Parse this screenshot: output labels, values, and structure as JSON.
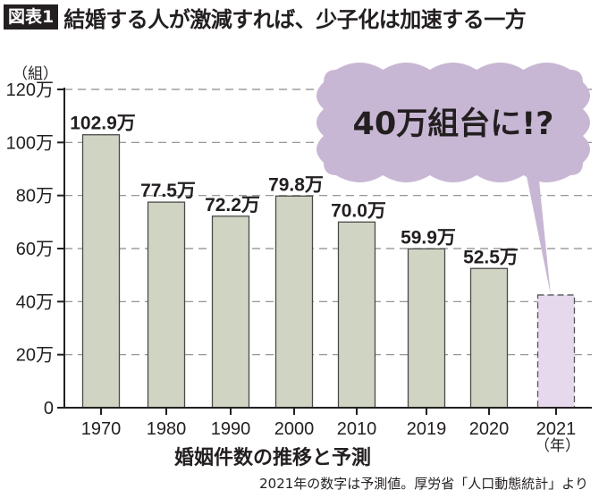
{
  "header": {
    "badge": "図表1",
    "title": "結婚する人が激減すれば、少子化は加速する一方"
  },
  "axis": {
    "unit": "（組）",
    "year_unit": "（年）"
  },
  "callout": {
    "text": "40万組台に!?",
    "color": "#c8b7d4"
  },
  "subtitle": "婚姻件数の推移と予測",
  "source": "2021年の数字は予測値。厚労省「人口動態統計」より",
  "colors": {
    "bar": "#cfd4c3",
    "bar_forecast": "#e6d9ee",
    "grid": "#8a8a8a"
  },
  "chart_data": {
    "type": "bar",
    "title": "婚姻件数の推移と予測",
    "categories": [
      "1970",
      "1980",
      "1990",
      "2000",
      "2010",
      "2019",
      "2020",
      "2021"
    ],
    "values": [
      102.9,
      77.5,
      72.2,
      79.8,
      70.0,
      59.9,
      52.5,
      42.5
    ],
    "value_labels": [
      "102.9万",
      "77.5万",
      "72.2万",
      "79.8万",
      "70.0万",
      "59.9万",
      "52.5万",
      ""
    ],
    "forecast": [
      false,
      false,
      false,
      false,
      false,
      false,
      false,
      true
    ],
    "xlabel": "（年）",
    "ylabel": "（組）",
    "yticks": [
      "0",
      "20万",
      "40万",
      "60万",
      "80万",
      "100万",
      "120万"
    ],
    "ylim": [
      0,
      120
    ],
    "unit": "万組",
    "grid": true,
    "annotation": "40万組台に!?"
  }
}
